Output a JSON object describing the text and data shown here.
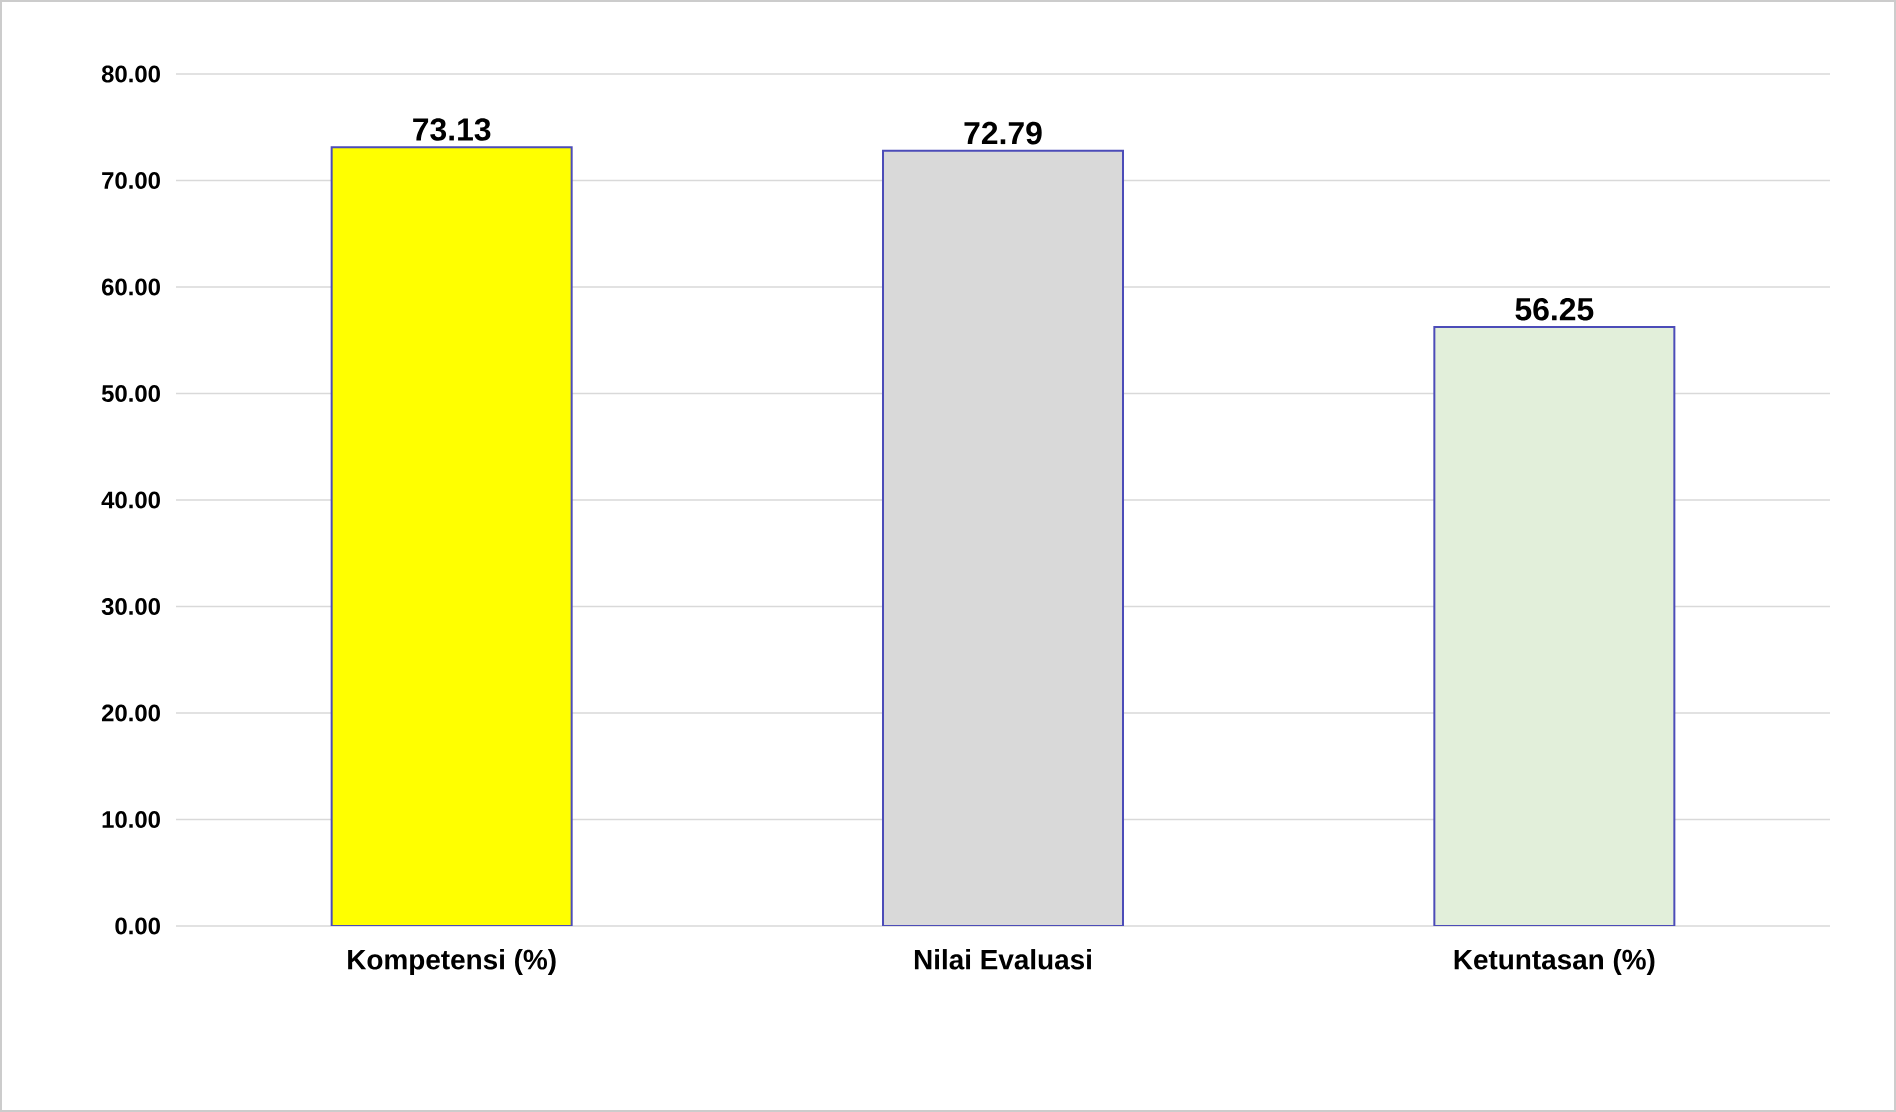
{
  "chart_data": {
    "type": "bar",
    "categories": [
      "Kompetensi (%)",
      "Nilai Evaluasi",
      "Ketuntasan (%)"
    ],
    "values": [
      73.13,
      72.79,
      56.25
    ],
    "colors": [
      "#ffff00",
      "#d9d9d9",
      "#e2efda"
    ],
    "ylim": [
      0,
      80
    ],
    "yticks": [
      {
        "value": 0,
        "label": "0.00"
      },
      {
        "value": 10,
        "label": "10.00"
      },
      {
        "value": 20,
        "label": "20.00"
      },
      {
        "value": 30,
        "label": "30.00"
      },
      {
        "value": 40,
        "label": "40.00"
      },
      {
        "value": 50,
        "label": "50.00"
      },
      {
        "value": 60,
        "label": "60.00"
      },
      {
        "value": 70,
        "label": "70.00"
      },
      {
        "value": 80,
        "label": "80.00"
      }
    ],
    "grid": "y",
    "data_labels": true
  }
}
